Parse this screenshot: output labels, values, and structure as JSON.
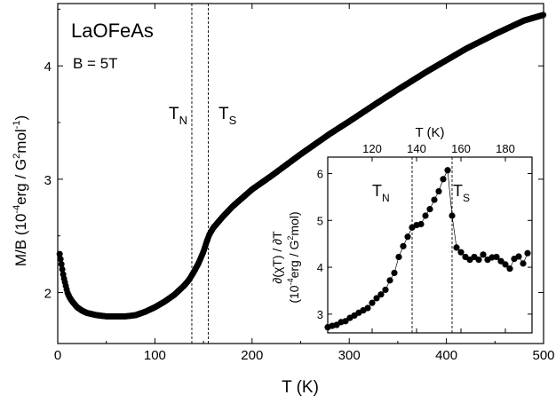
{
  "chart_data": [
    {
      "type": "scatter",
      "title": "",
      "xlabel": "T (K)",
      "ylabel_main": "M/B",
      "ylabel_unit": "(10",
      "ylabel_unit_exp": "-4",
      "ylabel_unit_mid": "erg / G",
      "ylabel_unit_exp2": "2",
      "ylabel_unit_mid2": "mol",
      "ylabel_unit_exp3": "-1",
      "ylabel_unit_end": ")",
      "xlim": [
        0,
        500
      ],
      "ylim": [
        1.55,
        4.55
      ],
      "xticks": [
        0,
        100,
        200,
        300,
        400,
        500
      ],
      "yticks": [
        2,
        3,
        4
      ],
      "annotations": {
        "material": "LaOFeAs",
        "field": "B = 5T",
        "tn_main": "T",
        "tn_sub": "N",
        "ts_main": "T",
        "ts_sub": "S"
      },
      "vertical_lines_x": [
        138,
        155
      ],
      "series": [
        {
          "x": [
            2,
            4,
            6,
            8,
            10,
            12,
            15,
            20,
            25,
            30,
            40,
            50,
            60,
            70,
            80,
            90,
            100,
            110,
            120,
            130,
            135,
            140,
            145,
            150,
            153,
            156,
            160,
            170,
            180,
            200,
            220,
            250,
            280,
            300,
            330,
            350,
            380,
            400,
            420,
            450,
            480,
            500
          ],
          "y": [
            2.34,
            2.24,
            2.14,
            2.07,
            2.0,
            1.96,
            1.92,
            1.87,
            1.84,
            1.82,
            1.8,
            1.79,
            1.79,
            1.79,
            1.8,
            1.83,
            1.87,
            1.92,
            1.98,
            2.06,
            2.11,
            2.18,
            2.26,
            2.36,
            2.44,
            2.51,
            2.57,
            2.67,
            2.76,
            2.91,
            3.03,
            3.22,
            3.4,
            3.51,
            3.68,
            3.79,
            3.95,
            4.05,
            4.15,
            4.28,
            4.4,
            4.45
          ]
        }
      ]
    },
    {
      "type": "line",
      "title": "",
      "xlabel": "T (K)",
      "ylabel_line1": "∂(χT) / ∂T",
      "ylabel_line2": "(10",
      "ylabel_line2_exp": "-4",
      "ylabel_line2_mid": "erg / G",
      "ylabel_line2_exp2": "2",
      "ylabel_line2_end": "mol)",
      "xlim": [
        100,
        192
      ],
      "ylim": [
        2.6,
        6.35
      ],
      "xticks": [
        120,
        140,
        160,
        180
      ],
      "yticks": [
        3,
        4,
        5,
        6
      ],
      "annotations": {
        "tn_main": "T",
        "tn_sub": "N",
        "ts_main": "T",
        "ts_sub": "S"
      },
      "vertical_lines_x": [
        138,
        156
      ],
      "series": [
        {
          "x": [
            100,
            102,
            104,
            106,
            108,
            110,
            112,
            114,
            116,
            118,
            120,
            122,
            124,
            126,
            128,
            130,
            132,
            134,
            136,
            138,
            140,
            142,
            144,
            146,
            148,
            150,
            152,
            154,
            156,
            158,
            160,
            162,
            164,
            166,
            168,
            170,
            172,
            174,
            176,
            178,
            180,
            182,
            184,
            186,
            188,
            190
          ],
          "y": [
            2.72,
            2.75,
            2.77,
            2.83,
            2.85,
            2.92,
            2.97,
            3.03,
            3.08,
            3.13,
            3.24,
            3.34,
            3.42,
            3.52,
            3.72,
            3.88,
            4.22,
            4.45,
            4.65,
            4.85,
            4.9,
            4.92,
            5.1,
            5.24,
            5.44,
            5.62,
            5.88,
            6.07,
            5.1,
            4.42,
            4.32,
            4.22,
            4.16,
            4.22,
            4.16,
            4.27,
            4.16,
            4.21,
            4.22,
            4.13,
            4.06,
            3.97,
            4.18,
            4.23,
            4.08,
            4.3
          ]
        }
      ]
    }
  ]
}
